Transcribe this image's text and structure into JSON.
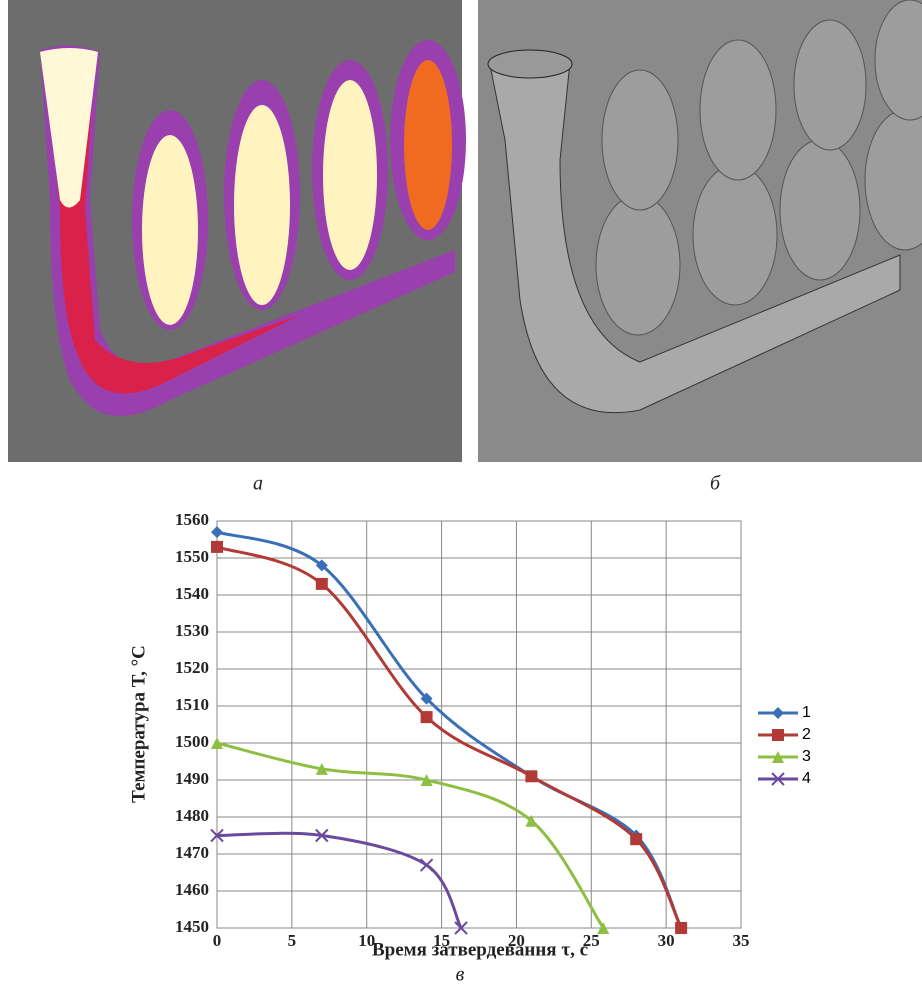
{
  "panel_labels": [
    "а",
    "б",
    "в"
  ],
  "chart_data": {
    "type": "line",
    "x_label": "Время затвердевання τ, с",
    "y_label": "Температура T, °C",
    "xlim": [
      0,
      35
    ],
    "xticks": [
      0,
      5,
      10,
      15,
      20,
      25,
      30,
      35
    ],
    "ylim": [
      1450,
      1560
    ],
    "yticks": [
      1450,
      1460,
      1470,
      1480,
      1490,
      1500,
      1510,
      1520,
      1530,
      1540,
      1550,
      1560
    ],
    "grid": true,
    "legend": "right",
    "series": [
      {
        "name": "1",
        "color": "#3a6fb8",
        "marker": "diamond",
        "x": [
          0,
          7,
          14,
          21,
          28,
          31
        ],
        "values": [
          1557,
          1548,
          1512,
          1491,
          1475,
          1450
        ]
      },
      {
        "name": "2",
        "color": "#b23a36",
        "marker": "square",
        "x": [
          0,
          7,
          14,
          21,
          28,
          31
        ],
        "values": [
          1553,
          1543,
          1507,
          1491,
          1474,
          1450
        ]
      },
      {
        "name": "3",
        "color": "#8dbf42",
        "marker": "triangle",
        "x": [
          0,
          7,
          14,
          21,
          25.8
        ],
        "values": [
          1500,
          1493,
          1490,
          1479,
          1450
        ]
      },
      {
        "name": "4",
        "color": "#6a4a9e",
        "marker": "cross",
        "x": [
          0,
          7,
          14,
          16.3
        ],
        "values": [
          1475,
          1475,
          1467,
          1450
        ]
      }
    ]
  }
}
